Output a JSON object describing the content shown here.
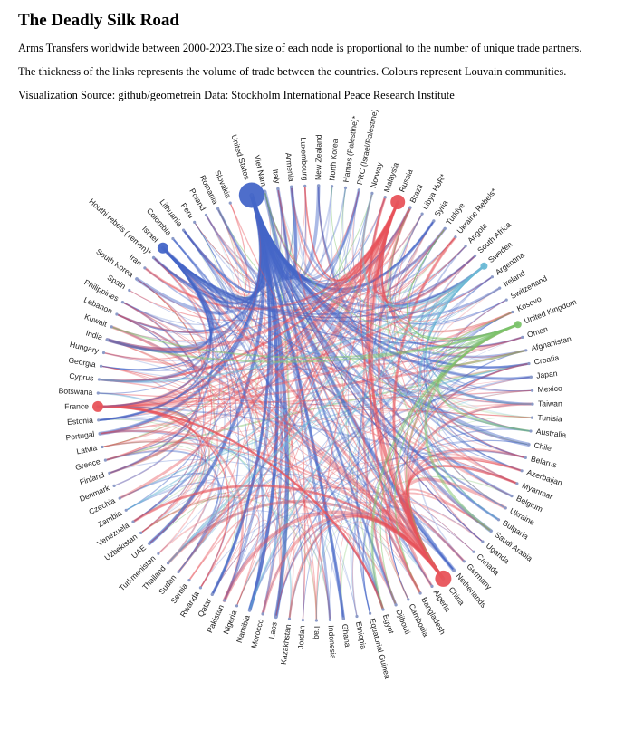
{
  "header": {
    "title": "The Deadly Silk Road",
    "line1": "Arms Transfers worldwide between 2000-2023.The size of each node is proportional to the number of unique trade partners.",
    "line2": "The thickness of the links represents the volume of trade between the countries. Colours represent Louvain communities.",
    "line3": "Visualization Source: github/geometrein Data: Stockholm International Peace Research Institute"
  },
  "colors": {
    "blue": "#4466c8",
    "red": "#e8535a",
    "green": "#7cc46a",
    "lightblue": "#6bbad6"
  },
  "countries": [
    "United States",
    "Viet Nam",
    "Italy",
    "Armenia",
    "Luxembourg",
    "New Zealand",
    "North Korea",
    "Hamas (Palestine)*",
    "PRC (Israel/Palestine)",
    "Norway",
    "Malaysia",
    "Russia",
    "Brazil",
    "Libya HoR*",
    "Syria",
    "Turkiye",
    "Ukraine Rebels*",
    "Angola",
    "South Africa",
    "Sweden",
    "Argentina",
    "Ireland",
    "Switzerland",
    "Kosovo",
    "United Kingdom",
    "Oman",
    "Afghanistan",
    "Croatia",
    "Japan",
    "Mexico",
    "Taiwan",
    "Tunisia",
    "Australia",
    "Chile",
    "Belarus",
    "Azerbaijan",
    "Myanmar",
    "Belgium",
    "Ukraine",
    "Bulgaria",
    "Saudi Arabia",
    "Uganda",
    "Canada",
    "Germany",
    "Netherlands",
    "China",
    "Algeria",
    "Bangladesh",
    "Cambodia",
    "Djibouti",
    "Egypt",
    "Equatorial Guinea",
    "Ethiopia",
    "Ghana",
    "Indonesia",
    "Iraq",
    "Jordan",
    "Kazakhstan",
    "Laos",
    "Morocco",
    "Namibia",
    "Nigeria",
    "Pakistan",
    "Qatar",
    "Rwanda",
    "Serbia",
    "Sudan",
    "Thailand",
    "Turkmenistan",
    "UAE",
    "Uzbekistan",
    "Venezuela",
    "Zambia",
    "Czechia",
    "Denmark",
    "Finland",
    "Greece",
    "Latvia",
    "Portugal",
    "Estonia",
    "France",
    "Botswana",
    "Cyprus",
    "Georgia",
    "Hungary",
    "India",
    "Kuwait",
    "Lebanon",
    "Philippines",
    "Spain",
    "South Korea",
    "Iran",
    "Houthi rebels (Yemen)*",
    "Israel",
    "Colombia",
    "Lithuania",
    "Peru",
    "Poland",
    "Romania",
    "Slovakia"
  ],
  "nodes": [
    {
      "name": "United States",
      "color": "blue",
      "size": 14
    },
    {
      "name": "Russia",
      "color": "red",
      "size": 8
    },
    {
      "name": "China",
      "color": "red",
      "size": 9
    },
    {
      "name": "France",
      "color": "red",
      "size": 6
    },
    {
      "name": "Israel",
      "color": "blue",
      "size": 6
    },
    {
      "name": "Sweden",
      "color": "lightblue",
      "size": 4
    },
    {
      "name": "United Kingdom",
      "color": "green",
      "size": 4
    }
  ]
}
